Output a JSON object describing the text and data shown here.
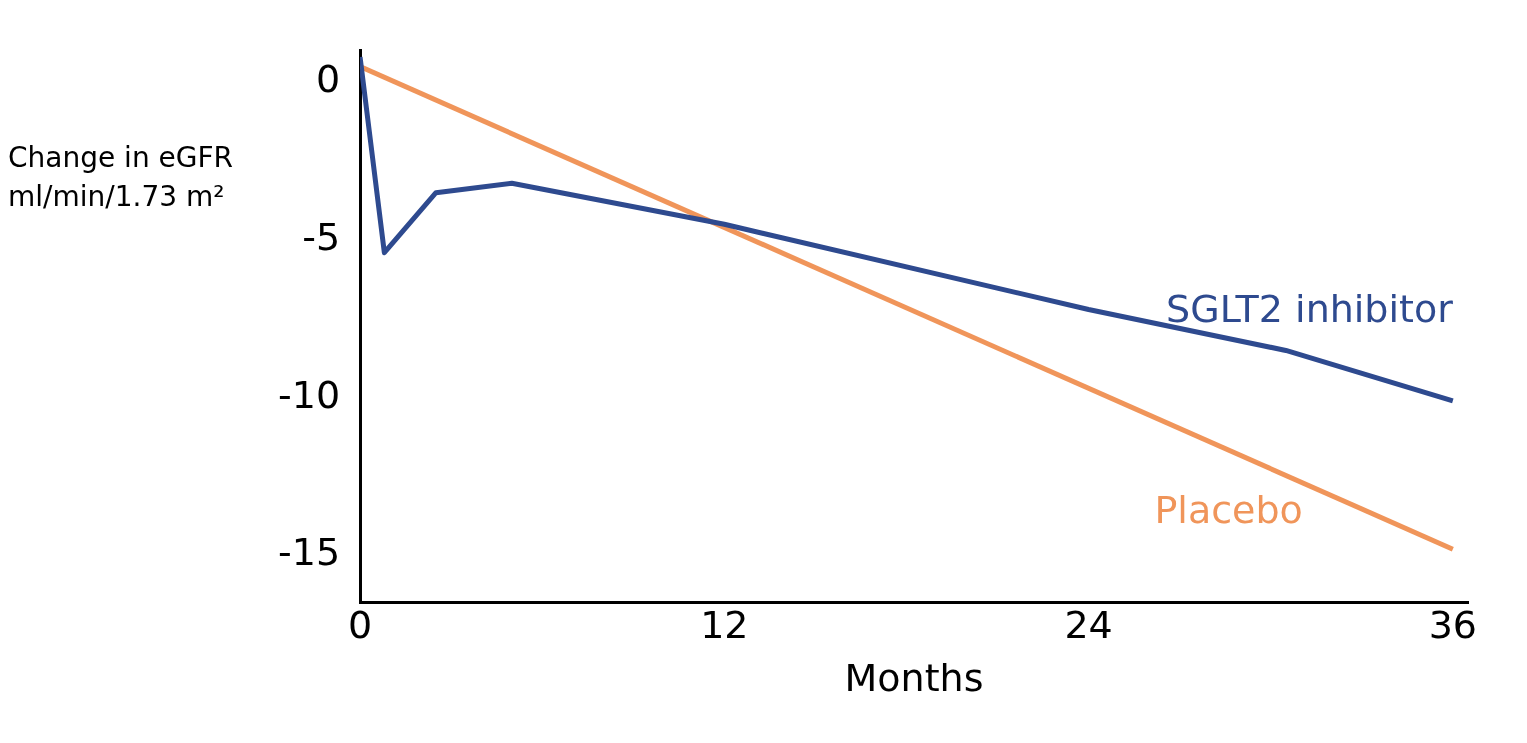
{
  "chart_data": {
    "type": "line",
    "xlabel": "Months",
    "ylabel": "Change in eGFR ml/min/1.73 m²",
    "xlim": [
      0,
      36.5
    ],
    "ylim": [
      -16.5,
      1
    ],
    "xticks": [
      0,
      12,
      24,
      36
    ],
    "yticks": [
      0,
      -5,
      -10,
      -15
    ],
    "grid": false,
    "legend": false,
    "marker": "none",
    "line_style": "solid",
    "series": [
      {
        "name": "SGLT2 inhibitor",
        "color": "#2e4a8f",
        "x": [
          0,
          0.8,
          2.5,
          5,
          12,
          24,
          30.5,
          36
        ],
        "values": [
          0.8,
          -5.4,
          -3.5,
          -3.2,
          -4.5,
          -7.2,
          -8.5,
          -10.1
        ]
      },
      {
        "name": "Placebo",
        "color": "#f0955a",
        "x": [
          0,
          36
        ],
        "values": [
          0.5,
          -14.8
        ]
      }
    ]
  }
}
